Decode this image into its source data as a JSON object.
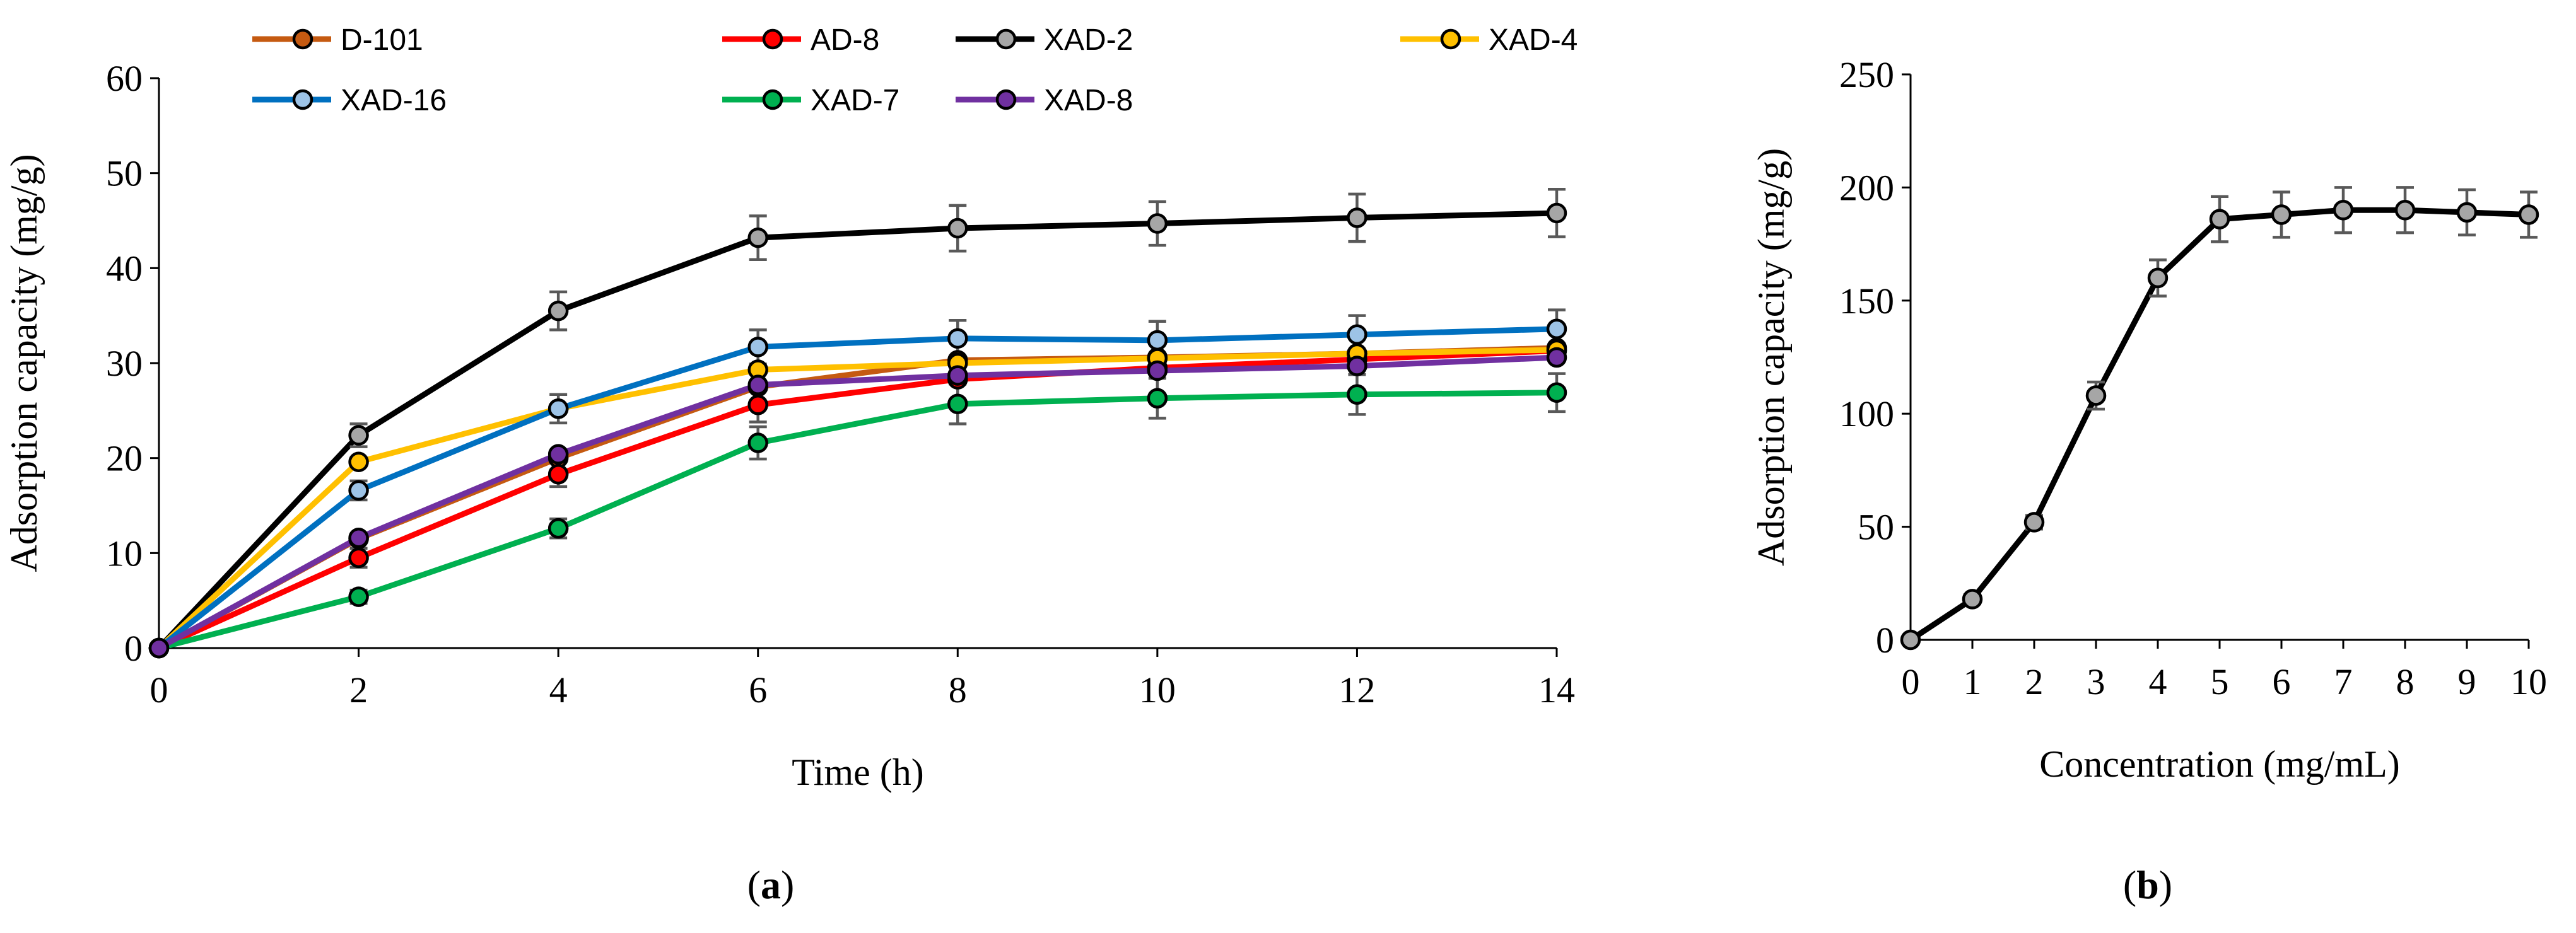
{
  "chart_data": [
    {
      "id": "a",
      "type": "line",
      "panel_label": "a",
      "title": "",
      "xlabel": "Time (h)",
      "ylabel": "Adsorption capacity (mg/g)",
      "xlim": [
        0,
        14
      ],
      "ylim": [
        0,
        60
      ],
      "xticks": [
        0,
        2,
        4,
        6,
        8,
        10,
        12,
        14
      ],
      "yticks": [
        0,
        10,
        20,
        30,
        40,
        50,
        60
      ],
      "grid": false,
      "legend": "top",
      "x": [
        0,
        2,
        4,
        6,
        8,
        10,
        12,
        14
      ],
      "series": [
        {
          "name": "D-101",
          "color": "#C55A11",
          "marker": "#C55A11",
          "values": [
            0,
            11.5,
            20.0,
            27.5,
            30.3,
            30.6,
            31.0,
            31.6
          ],
          "errors": [
            0,
            0,
            0,
            0,
            0,
            0,
            0,
            0
          ]
        },
        {
          "name": "AD-8",
          "color": "#FF0000",
          "marker": "#FF0000",
          "values": [
            0,
            9.5,
            18.3,
            25.6,
            28.3,
            29.5,
            30.4,
            31.3
          ],
          "errors": [
            0,
            1.0,
            1.3,
            1.8,
            0,
            0,
            0,
            0
          ]
        },
        {
          "name": "XAD-2",
          "color": "#000000",
          "marker": "#A6A6A6",
          "values": [
            0,
            22.4,
            35.5,
            43.2,
            44.2,
            44.7,
            45.3,
            45.8
          ],
          "errors": [
            0,
            1.2,
            2.0,
            2.3,
            2.4,
            2.3,
            2.5,
            2.5
          ]
        },
        {
          "name": "XAD-4",
          "color": "#FFC000",
          "marker": "#FFC000",
          "values": [
            0,
            19.6,
            25.2,
            29.3,
            30.0,
            30.5,
            31.0,
            31.4
          ],
          "errors": [
            0,
            0,
            0,
            0,
            0,
            0,
            0,
            0
          ]
        },
        {
          "name": "XAD-16",
          "color": "#0070C0",
          "marker": "#9DC3E6",
          "values": [
            0,
            16.6,
            25.2,
            31.7,
            32.6,
            32.4,
            33.0,
            33.6
          ],
          "errors": [
            0,
            1.0,
            1.5,
            1.8,
            1.9,
            2.0,
            2.0,
            2.0
          ]
        },
        {
          "name": "XAD-7",
          "color": "#00B050",
          "marker": "#00B050",
          "values": [
            0,
            5.4,
            12.6,
            21.6,
            25.7,
            26.3,
            26.7,
            26.9
          ],
          "errors": [
            0,
            0.7,
            1.0,
            1.7,
            2.1,
            2.1,
            2.1,
            2.0
          ]
        },
        {
          "name": "XAD-8",
          "color": "#7030A0",
          "marker": "#7030A0",
          "values": [
            0,
            11.6,
            20.4,
            27.7,
            28.7,
            29.2,
            29.7,
            30.6
          ],
          "errors": [
            0,
            0,
            0,
            0,
            0,
            0,
            0,
            0
          ]
        }
      ]
    },
    {
      "id": "b",
      "type": "line",
      "panel_label": "b",
      "title": "",
      "xlabel": "Concentration (mg/mL)",
      "ylabel": "Adsorption capacity (mg/g)",
      "xlim": [
        0,
        10
      ],
      "ylim": [
        0,
        250
      ],
      "xticks": [
        0,
        1,
        2,
        3,
        4,
        5,
        6,
        7,
        8,
        9,
        10
      ],
      "yticks": [
        0,
        50,
        100,
        150,
        200,
        250
      ],
      "grid": false,
      "legend": "none",
      "x": [
        0,
        1,
        2,
        3,
        4,
        5,
        6,
        7,
        8,
        9,
        10
      ],
      "series": [
        {
          "name": "Adsorption capacity",
          "color": "#000000",
          "marker": "#A6A6A6",
          "values": [
            0,
            18,
            52,
            108,
            160,
            186,
            188,
            190,
            190,
            189,
            188
          ],
          "errors": [
            0,
            2,
            3,
            6,
            8,
            10,
            10,
            10,
            10,
            10,
            10
          ]
        }
      ]
    }
  ]
}
